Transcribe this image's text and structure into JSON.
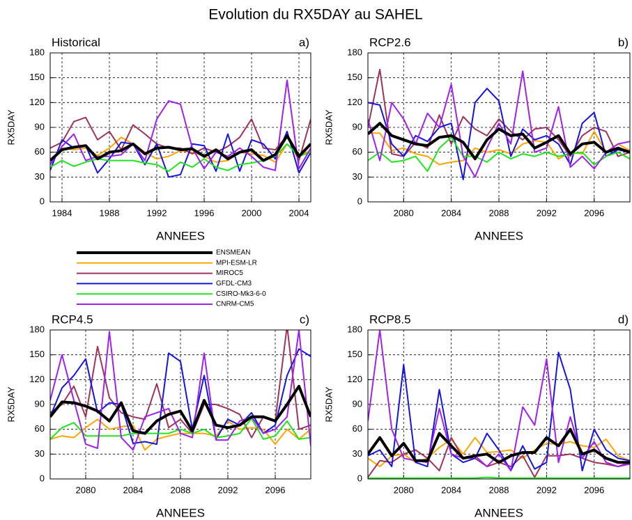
{
  "title": "Evolution du RX5DAY au SAHEL",
  "chart_data": [
    {
      "type": "line",
      "title": "Historical",
      "panel_label": "a)",
      "xlabel": "ANNEES",
      "ylabel": "RX5DAY",
      "x": [
        1983,
        1984,
        1985,
        1986,
        1987,
        1988,
        1989,
        1990,
        1991,
        1992,
        1993,
        1994,
        1995,
        1996,
        1997,
        1998,
        1999,
        2000,
        2001,
        2002,
        2003,
        2004,
        2005
      ],
      "xlim": [
        1983,
        2005
      ],
      "xticks": [
        1984,
        1988,
        1992,
        1996,
        2000,
        2004
      ],
      "ylim": [
        0,
        180
      ],
      "yticks": [
        0,
        30,
        60,
        90,
        120,
        150,
        180
      ],
      "grid": true,
      "series": [
        {
          "name": "ENSMEAN",
          "color": "#000000",
          "values": [
            50,
            63,
            66,
            68,
            52,
            60,
            62,
            70,
            58,
            65,
            66,
            63,
            64,
            55,
            63,
            52,
            60,
            63,
            50,
            57,
            80,
            55,
            70
          ]
        },
        {
          "name": "MPI-ESM-LR",
          "color": "#ffa500",
          "values": [
            50,
            65,
            63,
            65,
            56,
            65,
            78,
            70,
            60,
            52,
            55,
            62,
            60,
            55,
            48,
            50,
            60,
            58,
            56,
            48,
            70,
            55,
            62
          ]
        },
        {
          "name": "MIROC5",
          "color": "#a0325a",
          "values": [
            65,
            72,
            97,
            102,
            75,
            85,
            63,
            93,
            82,
            70,
            65,
            65,
            58,
            65,
            60,
            67,
            78,
            100,
            65,
            63,
            80,
            50,
            100
          ]
        },
        {
          "name": "GFDL-CM3",
          "color": "#1414e6",
          "values": [
            38,
            75,
            65,
            68,
            35,
            52,
            72,
            70,
            45,
            70,
            30,
            33,
            70,
            68,
            37,
            82,
            37,
            75,
            70,
            52,
            85,
            35,
            60
          ]
        },
        {
          "name": "CSIRO-Mk3-6-0",
          "color": "#1ee61e",
          "values": [
            42,
            50,
            43,
            48,
            52,
            50,
            50,
            50,
            47,
            45,
            37,
            48,
            42,
            52,
            42,
            38,
            45,
            47,
            50,
            55,
            70,
            55,
            60
          ]
        },
        {
          "name": "CNRM-CM5",
          "color": "#a020f0",
          "values": [
            45,
            67,
            82,
            50,
            55,
            55,
            57,
            70,
            50,
            100,
            122,
            118,
            65,
            40,
            60,
            55,
            65,
            55,
            42,
            38,
            147,
            40,
            65
          ]
        }
      ]
    },
    {
      "type": "line",
      "title": "RCP2.6",
      "panel_label": "b)",
      "xlabel": "ANNEES",
      "ylabel": "RX5DAY",
      "x": [
        2077,
        2078,
        2079,
        2080,
        2081,
        2082,
        2083,
        2084,
        2085,
        2086,
        2087,
        2088,
        2089,
        2090,
        2091,
        2092,
        2093,
        2094,
        2095,
        2096,
        2097,
        2098,
        2099
      ],
      "xlim": [
        2077,
        2099
      ],
      "xticks": [
        2080,
        2084,
        2088,
        2092,
        2096
      ],
      "ylim": [
        0,
        180
      ],
      "yticks": [
        0,
        30,
        60,
        90,
        120,
        150,
        180
      ],
      "grid": true,
      "series": [
        {
          "values": [
            82,
            95,
            80,
            75,
            70,
            68,
            78,
            80,
            72,
            52,
            75,
            88,
            80,
            82,
            65,
            72,
            80,
            58,
            70,
            72,
            60,
            65,
            60
          ]
        },
        {
          "values": [
            83,
            83,
            62,
            65,
            58,
            55,
            45,
            48,
            50,
            65,
            60,
            63,
            58,
            70,
            74,
            72,
            52,
            60,
            58,
            85,
            60,
            70,
            62
          ]
        },
        {
          "values": [
            90,
            160,
            58,
            55,
            72,
            65,
            105,
            70,
            103,
            88,
            80,
            100,
            85,
            75,
            88,
            90,
            75,
            55,
            80,
            90,
            85,
            55,
            60
          ]
        },
        {
          "values": [
            120,
            117,
            70,
            55,
            80,
            73,
            90,
            95,
            27,
            120,
            137,
            122,
            55,
            88,
            75,
            80,
            70,
            45,
            95,
            108,
            55,
            63,
            60
          ]
        },
        {
          "values": [
            50,
            60,
            48,
            50,
            55,
            37,
            65,
            78,
            55,
            55,
            48,
            60,
            52,
            58,
            55,
            60,
            55,
            58,
            60,
            45,
            55,
            60,
            52
          ]
        },
        {
          "values": [
            100,
            50,
            120,
            100,
            70,
            107,
            90,
            142,
            55,
            30,
            65,
            95,
            70,
            158,
            60,
            65,
            115,
            42,
            55,
            40,
            60,
            70,
            73
          ]
        }
      ]
    },
    {
      "type": "line",
      "title": "RCP4.5",
      "panel_label": "c)",
      "xlabel": "ANNEES",
      "ylabel": "RX5DAY",
      "x": [
        2077,
        2078,
        2079,
        2080,
        2081,
        2082,
        2083,
        2084,
        2085,
        2086,
        2087,
        2088,
        2089,
        2090,
        2091,
        2092,
        2093,
        2094,
        2095,
        2096,
        2097,
        2098,
        2099
      ],
      "xlim": [
        2077,
        2099
      ],
      "xticks": [
        2080,
        2084,
        2088,
        2092,
        2096
      ],
      "ylim": [
        0,
        180
      ],
      "yticks": [
        0,
        30,
        60,
        90,
        120,
        150,
        180
      ],
      "grid": true,
      "series": [
        {
          "values": [
            75,
            93,
            92,
            88,
            82,
            70,
            92,
            58,
            55,
            70,
            78,
            82,
            58,
            95,
            65,
            62,
            65,
            75,
            75,
            70,
            90,
            112,
            75
          ]
        },
        {
          "values": [
            48,
            52,
            50,
            62,
            72,
            60,
            63,
            65,
            35,
            48,
            52,
            55,
            55,
            55,
            52,
            70,
            60,
            62,
            60,
            42,
            60,
            48,
            60
          ]
        },
        {
          "values": [
            80,
            90,
            112,
            75,
            160,
            98,
            80,
            75,
            72,
            115,
            62,
            72,
            55,
            90,
            90,
            85,
            78,
            50,
            75,
            70,
            185,
            60,
            65
          ]
        },
        {
          "values": [
            75,
            110,
            125,
            145,
            80,
            92,
            90,
            43,
            45,
            42,
            152,
            142,
            60,
            125,
            48,
            72,
            65,
            80,
            55,
            65,
            125,
            157,
            148
          ]
        },
        {
          "values": [
            48,
            62,
            68,
            52,
            52,
            52,
            52,
            55,
            55,
            55,
            55,
            60,
            55,
            60,
            50,
            52,
            55,
            73,
            48,
            52,
            70,
            48,
            50
          ]
        },
        {
          "values": [
            95,
            150,
            95,
            42,
            37,
            178,
            50,
            35,
            75,
            80,
            85,
            55,
            50,
            152,
            47,
            47,
            70,
            75,
            55,
            60,
            75,
            180,
            40
          ]
        }
      ]
    },
    {
      "type": "line",
      "title": "RCP8.5",
      "panel_label": "d)",
      "xlabel": "ANNEES",
      "ylabel": "RX5DAY",
      "x": [
        2077,
        2078,
        2079,
        2080,
        2081,
        2082,
        2083,
        2084,
        2085,
        2086,
        2087,
        2088,
        2089,
        2090,
        2091,
        2092,
        2093,
        2094,
        2095,
        2096,
        2097,
        2098,
        2099
      ],
      "xlim": [
        2077,
        2099
      ],
      "xticks": [
        2080,
        2084,
        2088,
        2092,
        2096
      ],
      "ylim": [
        0,
        180
      ],
      "yticks": [
        0,
        30,
        60,
        90,
        120,
        150,
        180
      ],
      "grid": true,
      "series": [
        {
          "values": [
            30,
            50,
            28,
            43,
            22,
            22,
            55,
            40,
            25,
            28,
            30,
            20,
            28,
            32,
            32,
            50,
            40,
            60,
            30,
            35,
            25,
            20,
            20
          ]
        },
        {
          "values": [
            25,
            15,
            28,
            30,
            20,
            25,
            38,
            48,
            30,
            50,
            32,
            33,
            35,
            25,
            35,
            43,
            42,
            45,
            40,
            38,
            48,
            28,
            22
          ]
        },
        {
          "values": [
            2,
            22,
            20,
            30,
            35,
            25,
            10,
            50,
            25,
            25,
            15,
            20,
            15,
            28,
            2,
            28,
            28,
            30,
            25,
            20,
            18,
            15,
            20
          ]
        },
        {
          "values": [
            28,
            35,
            15,
            138,
            20,
            15,
            108,
            30,
            20,
            25,
            55,
            35,
            10,
            40,
            12,
            20,
            153,
            108,
            10,
            60,
            35,
            25,
            22
          ]
        },
        {
          "values": [
            1,
            1,
            1,
            1,
            1,
            1,
            1,
            1,
            1,
            1,
            2,
            1,
            1,
            1,
            1,
            1,
            1,
            1,
            1,
            1,
            1,
            1,
            1
          ]
        },
        {
          "values": [
            70,
            180,
            60,
            25,
            22,
            20,
            85,
            30,
            25,
            28,
            15,
            30,
            10,
            87,
            65,
            145,
            20,
            75,
            25,
            45,
            20,
            15,
            18
          ]
        }
      ]
    }
  ]
}
